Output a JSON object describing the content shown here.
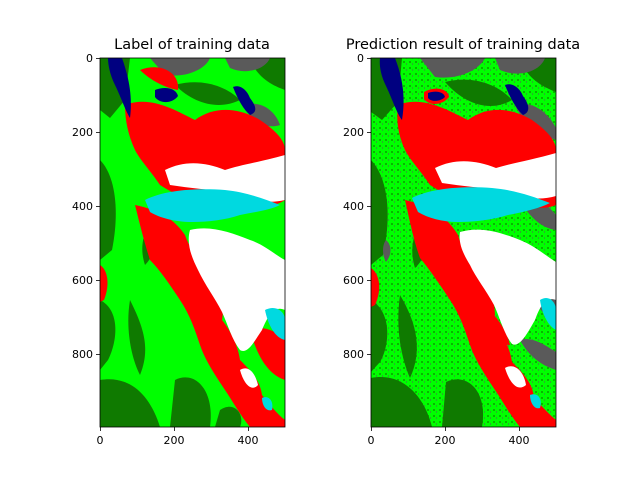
{
  "figure": {
    "panels": [
      {
        "title": "Label of training data",
        "x_ticks": [
          "0",
          "200",
          "400"
        ],
        "y_ticks": [
          "0",
          "200",
          "400",
          "600",
          "800"
        ]
      },
      {
        "title": "Prediction result of training data",
        "x_ticks": [
          "0",
          "200",
          "400"
        ],
        "y_ticks": [
          "0",
          "200",
          "400",
          "600",
          "800"
        ]
      }
    ],
    "class_colors": {
      "dark_vegetation": "#0f7a00",
      "bright_vegetation": "#00ff00",
      "bare_or_built": "#ff0000",
      "ice": "#00d9e0",
      "snow": "#ffffff",
      "rock": "#5a5a5a",
      "water": "#000080"
    }
  }
}
